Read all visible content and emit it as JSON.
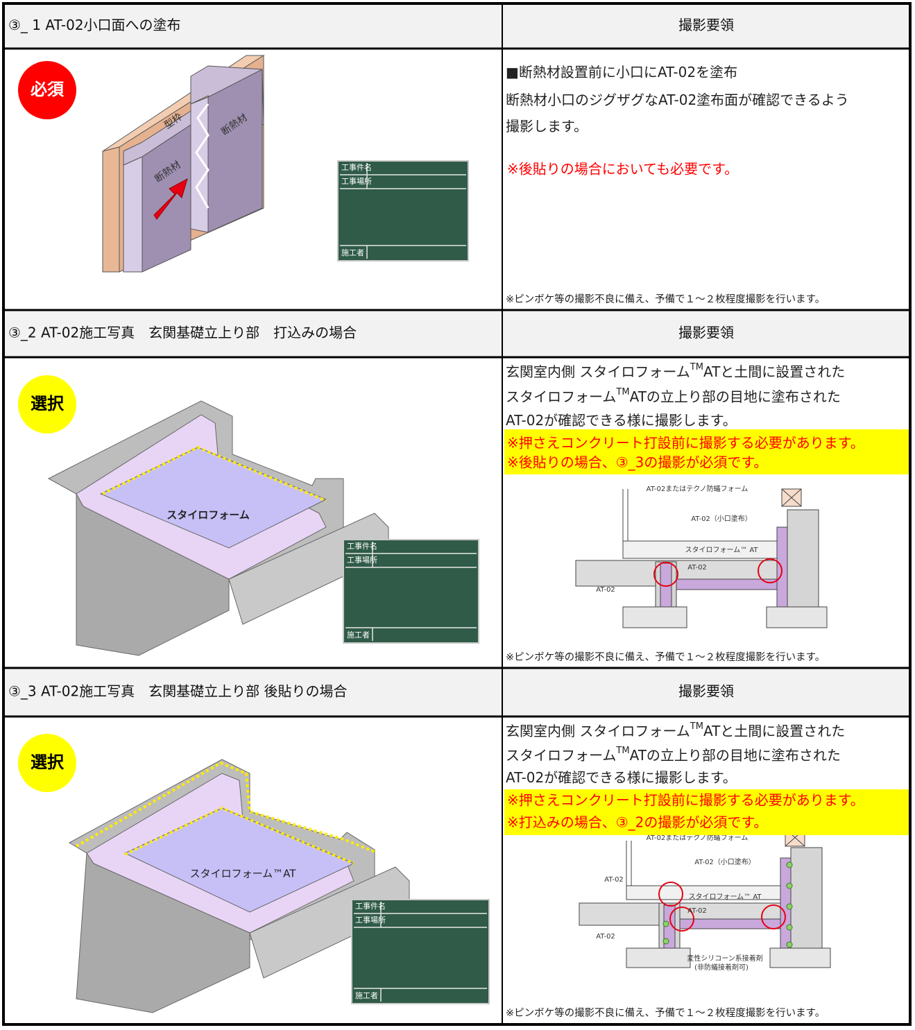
{
  "sections": [
    {
      "title": "③_ 1 AT-02小口面への塗布",
      "guide_header": "撮影要領",
      "badge": "必須",
      "illustration_labels": [
        "型枠",
        "断熱材",
        "断熱材"
      ],
      "board_labels": [
        "工事件名",
        "工事場所",
        "施工者"
      ],
      "lines": [
        [
          "■断熱材設置前に小口にAT-02を塗布"
        ],
        [
          "断熱材小口のジグザグなAT-02塗布面が確認できるよう"
        ],
        [
          "撮影します。"
        ]
      ],
      "notes": [
        "※後貼りの場合においても必要です。"
      ],
      "notes_highlight": false,
      "footnote": "※ピンボケ等の撮影不良に備え、予備で１～２枚程度撮影を行います。"
    },
    {
      "title": "③_2 AT-02施工写真　玄関基礎立上り部　打込みの場合",
      "guide_header": "撮影要領",
      "badge": "選択",
      "illustration_labels": [
        "スタイロフォーム"
      ],
      "board_labels": [
        "工事件名",
        "工事場所",
        "施工者"
      ],
      "lines": [
        [
          "玄関室内側 スタイロフォーム",
          "TM",
          "ATと土間に設置された"
        ],
        [
          "スタイロフォーム",
          "TM",
          "ATの立上り部の目地に塗布された"
        ],
        [
          "AT-02が確認できる様に撮影します。"
        ]
      ],
      "notes": [
        "※押さえコンクリート打設前に撮影する必要があります。",
        "※後貼りの場合、③_3の撮影が必須です。"
      ],
      "notes_highlight": true,
      "diagram_labels": [
        "AT-02またはテクノ防蟻フォーム",
        "AT-02（小口塗布）",
        "スタイロフォーム™ AT",
        "AT-02",
        "AT-02"
      ],
      "footnote": "※ピンボケ等の撮影不良に備え、予備で１～２枚程度撮影を行います。"
    },
    {
      "title": "③_3 AT-02施工写真　玄関基礎立上り部 後貼りの場合",
      "guide_header": "撮影要領",
      "badge": "選択",
      "illustration_labels": [
        "スタイロフォーム™AT"
      ],
      "board_labels": [
        "工事件名",
        "工事場所",
        "施工者"
      ],
      "lines": [
        [
          "玄関室内側 スタイロフォーム",
          "TM",
          "ATと土間に設置された"
        ],
        [
          "スタイロフォーム",
          "TM",
          "ATの立上り部の目地に塗布された"
        ],
        [
          "AT-02が確認できる様に撮影します。"
        ]
      ],
      "notes": [
        "※押さえコンクリート打設前に撮影する必要があります。",
        "※打込みの場合、③_2の撮影が必須です。"
      ],
      "notes_highlight": true,
      "diagram_labels": [
        "AT-02またはテクノ防蟻フォーム",
        "AT-02（小口塗布）",
        "スタイロフォーム™ AT",
        "AT-02",
        "AT-02",
        "AT-02",
        "変性シリコーン系接着剤",
        "(非防蟻接着剤可)"
      ],
      "footnote": "※ピンボケ等の撮影不良に備え、予備で１～２枚程度撮影を行います。"
    }
  ]
}
